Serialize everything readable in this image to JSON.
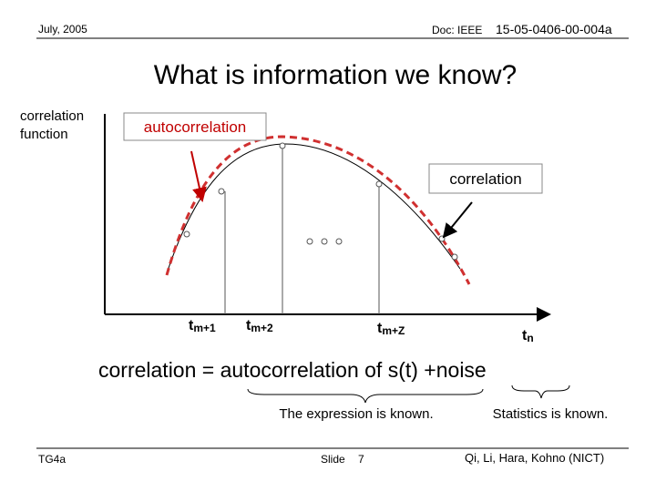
{
  "header": {
    "date": "July, 2005",
    "doc_prefix": "Doc: IEEE",
    "doc_number": "15-05-0406-00-004a"
  },
  "title": "What is information we know?",
  "diagram": {
    "y_axis_label": [
      "correlation",
      "function"
    ],
    "autocorrelation_box": "autocorrelation",
    "correlation_box": "correlation",
    "x_labels": [
      {
        "base": "t",
        "sub": "m+1"
      },
      {
        "base": "t",
        "sub": "m+2"
      },
      {
        "base": "t",
        "sub": "m+Z"
      },
      {
        "base": "t",
        "sub": "n"
      }
    ]
  },
  "equation": "correlation = autocorrelation of s(t) +noise",
  "notes": [
    "The expression is known.",
    "Statistics is known."
  ],
  "footer": {
    "group": "TG4a",
    "slide_label": "Slide",
    "slide_number": "7",
    "authors": "Qi, Li, Hara, Kohno (NICT)"
  }
}
